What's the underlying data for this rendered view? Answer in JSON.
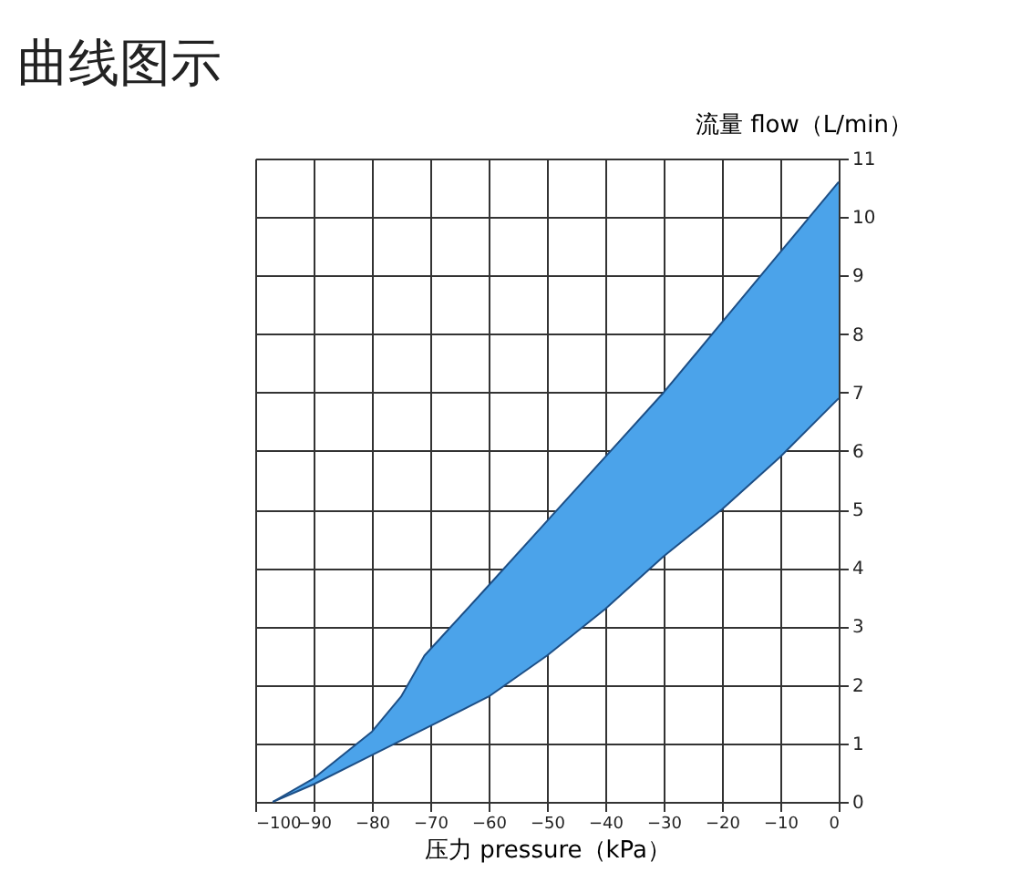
{
  "chart_data": {
    "type": "area",
    "title": "曲线图示",
    "xlabel": "压力 pressure（kPa）",
    "ylabel": "流量 flow（L/min）",
    "x": [
      -97,
      -90,
      -80,
      -75,
      -71,
      -60,
      -50,
      -40,
      -30,
      -20,
      -10,
      0
    ],
    "series": [
      {
        "type": "line",
        "color": "#1d4f86",
        "values": [
          0,
          0.3,
          0.8,
          1.05,
          1.25,
          1.8,
          2.5,
          3.3,
          4.2,
          5.0,
          5.9,
          6.9
        ]
      },
      {
        "color": "#4ba3ea",
        "values": [
          0,
          0.4,
          1.2,
          1.8,
          2.5,
          3.7,
          4.8,
          5.9,
          7.0,
          8.2,
          9.4,
          10.6
        ]
      }
    ],
    "xlim": [
      -100,
      0
    ],
    "xticks": [
      -100,
      -90,
      -80,
      -70,
      -60,
      -50,
      -40,
      -30,
      -20,
      -10,
      0
    ],
    "ylim": [
      0,
      11
    ],
    "yticks": [
      0,
      1,
      2,
      3,
      4,
      5,
      6,
      7,
      8,
      9,
      10,
      11
    ],
    "grid": true
  }
}
